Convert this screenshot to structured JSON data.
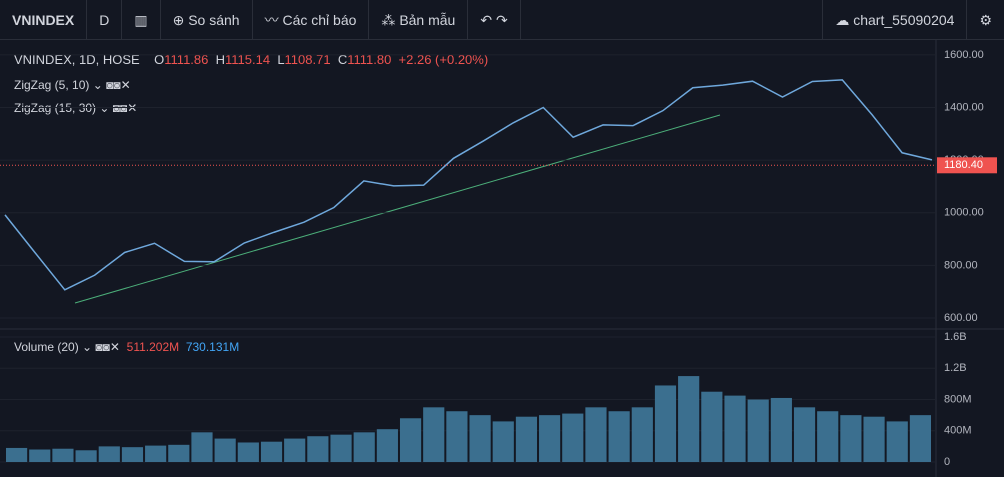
{
  "toolbar": {
    "symbol": "VNINDEX",
    "interval": "D",
    "compare": "So sánh",
    "indicators": "Các chỉ báo",
    "templates": "Bản mẫu",
    "layout": "chart_55090204"
  },
  "chart_data": [
    {
      "type": "line",
      "title": "VNINDEX, 1D, HOSE",
      "color": "#6fa8dc",
      "legend": {
        "labels": [
          "O",
          "H",
          "L",
          "C"
        ],
        "values": [
          1111.86,
          1115.14,
          1108.71,
          1111.8
        ],
        "value_labels": [
          "1111.86",
          "1115.14",
          "1108.71",
          "1111.80"
        ],
        "change": "+2.26 (+0.20%)"
      },
      "indicators": [
        "ZigZag (5, 10)",
        "ZigZag (15, 30)"
      ],
      "categories": [
        null,
        null,
        null,
        null,
        null,
        null,
        null,
        null,
        null,
        null,
        null,
        null,
        null,
        null,
        null,
        null,
        null,
        null,
        null,
        null,
        null,
        null,
        null,
        null,
        null,
        null,
        null,
        null,
        null,
        null,
        null,
        null
      ],
      "values": [
        992,
        849,
        707,
        763,
        849,
        884,
        815,
        814,
        885,
        926,
        964,
        1020,
        1121,
        1102,
        1105,
        1207,
        1273,
        1342,
        1400,
        1287,
        1334,
        1331,
        1388,
        1475,
        1485,
        1500,
        1440,
        1499,
        1505,
        1372,
        1228,
        1201
      ],
      "ylim": [
        562,
        1649
      ],
      "yticks": [
        {
          "value": 600,
          "label": "600.00"
        },
        {
          "value": 800,
          "label": "800.00"
        },
        {
          "value": 1000,
          "label": "1000.00"
        },
        {
          "value": 1200,
          "label": "1200.00"
        },
        {
          "value": 1400,
          "label": "1400.00"
        },
        {
          "value": 1600,
          "label": "1600.00"
        }
      ],
      "last_price": {
        "value": 1180.4,
        "label": "1180.40"
      },
      "grid": true
    },
    {
      "type": "bar",
      "title": "Volume (20)",
      "color": "#3b6f8f",
      "legend": {
        "values": [
          511202000,
          730131000
        ],
        "value_labels": [
          "511.202M",
          "730.131M"
        ],
        "colors": [
          "#ef5350",
          "#42a5f5"
        ]
      },
      "categories": [
        null,
        null,
        null,
        null,
        null,
        null,
        null,
        null,
        null,
        null,
        null,
        null,
        null,
        null,
        null,
        null,
        null,
        null,
        null,
        null,
        null,
        null,
        null,
        null,
        null,
        null,
        null,
        null,
        null,
        null,
        null,
        null,
        null,
        null,
        null,
        null,
        null,
        null,
        null,
        null
      ],
      "values": [
        180000000,
        160000000,
        170000000,
        150000000,
        200000000,
        190000000,
        210000000,
        220000000,
        380000000,
        300000000,
        250000000,
        260000000,
        300000000,
        330000000,
        350000000,
        380000000,
        420000000,
        560000000,
        700000000,
        650000000,
        600000000,
        520000000,
        580000000,
        600000000,
        620000000,
        700000000,
        650000000,
        700000000,
        980000000,
        1100000000,
        900000000,
        850000000,
        800000000,
        820000000,
        700000000,
        650000000,
        600000000,
        580000000,
        520000000,
        600000000
      ],
      "ylim": [
        -192000000,
        1690000000
      ],
      "yticks": [
        0,
        {
          "value": 400000000,
          "label": "400M"
        },
        {
          "value": 800000000,
          "label": "800M"
        },
        {
          "value": 1200000000,
          "label": "1.2B"
        },
        {
          "value": 1600000000,
          "label": "1.6B"
        }
      ],
      "grid": true
    }
  ]
}
